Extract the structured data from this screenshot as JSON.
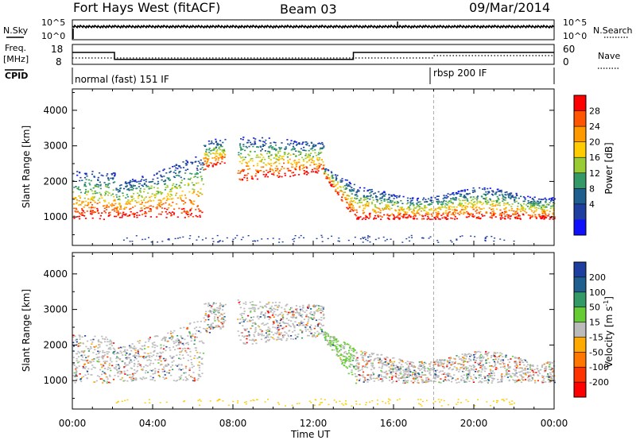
{
  "header": {
    "title": "Fort Hays West (fitACF)",
    "beam": "Beam 03",
    "date": "09/Mar/2014"
  },
  "sky_panel": {
    "left_label": "N.Sky",
    "left_ticks": [
      "10^5",
      "10^0"
    ],
    "right_ticks": [
      "10^5",
      "10^0"
    ],
    "right_label": "N.Search"
  },
  "freq_panel": {
    "left_label_line1": "Freq.",
    "left_label_line2": "[MHz]",
    "left_ticks": [
      "18",
      "8"
    ],
    "right_ticks": [
      "60",
      "0"
    ],
    "right_label": "Nave",
    "freq_steps": [
      {
        "t0": 0,
        "t1": 2.1,
        "freq": 14
      },
      {
        "t0": 2.1,
        "t1": 14.0,
        "freq": 10.5
      },
      {
        "t0": 14.0,
        "t1": 24,
        "freq": 14
      }
    ]
  },
  "cpid_panel": {
    "label": "CPID",
    "segments": [
      {
        "t": 0,
        "text": "normal (fast) 151 IF"
      },
      {
        "t": 18,
        "text": "rbsp 200 IF"
      }
    ]
  },
  "chart_data": [
    {
      "type": "heatmap",
      "name": "power",
      "ylabel": "Slant Range [km]",
      "yticks": [
        1000,
        2000,
        3000,
        4000
      ],
      "ylim": [
        200,
        4600
      ],
      "xlim": [
        0,
        24
      ],
      "xticks": [
        "00:00",
        "04:00",
        "08:00",
        "12:00",
        "16:00",
        "20:00",
        "00:00"
      ],
      "colorbar": {
        "label": "Power [dB]",
        "ticks": [
          "28",
          "24",
          "20",
          "16",
          "12",
          "8",
          "4"
        ],
        "colors": [
          "#ff0000",
          "#ff5500",
          "#ff9900",
          "#ffcc00",
          "#99cc33",
          "#339966",
          "#1f5f8f",
          "#1f3fa0",
          "#1010ff"
        ]
      }
    },
    {
      "type": "heatmap",
      "name": "velocity",
      "ylabel": "Slant Range [km]",
      "yticks": [
        1000,
        2000,
        3000,
        4000
      ],
      "ylim": [
        200,
        4600
      ],
      "xlim": [
        0,
        24
      ],
      "xticks": [
        "00:00",
        "04:00",
        "08:00",
        "12:00",
        "16:00",
        "20:00",
        "00:00"
      ],
      "xlabel": "Time UT",
      "colorbar": {
        "label": "Velocity [m s",
        "label_sup": "-1",
        "label_end": "]",
        "ticks": [
          "200",
          "100",
          "50",
          "15",
          "-15",
          "-50",
          "-100",
          "-200"
        ],
        "colors": [
          "#1f3fa0",
          "#1f5f8f",
          "#339966",
          "#66cc33",
          "#bbbbbb",
          "#ffaa00",
          "#ff7700",
          "#ff3300",
          "#ff0000"
        ]
      }
    }
  ]
}
